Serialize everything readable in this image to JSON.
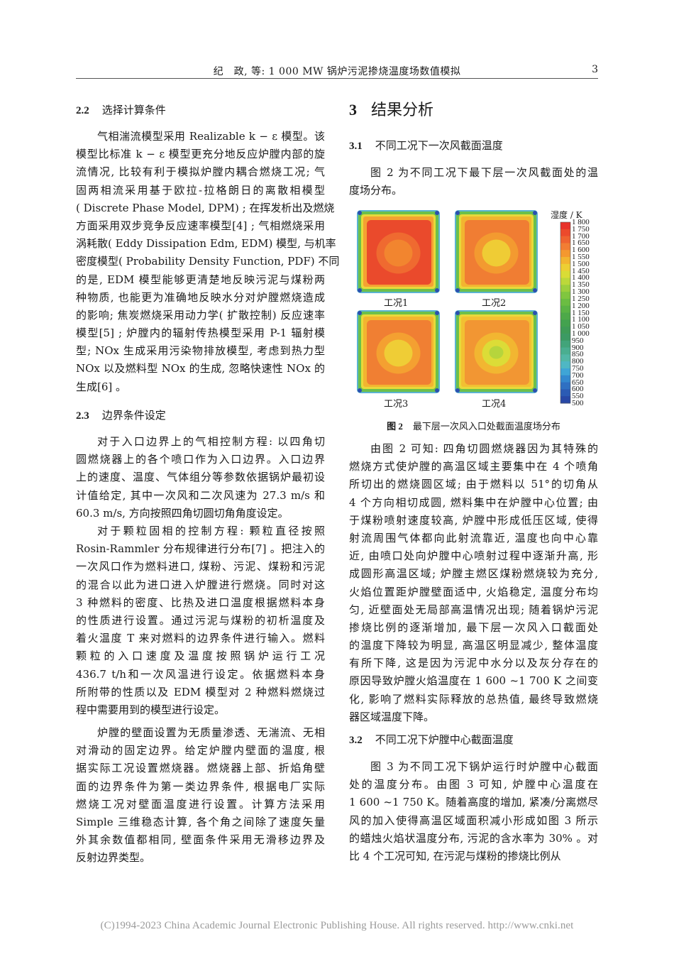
{
  "running_head": {
    "title": "纪　政, 等: 1 000 MW 锅炉污泥掺烧温度场数值模拟",
    "page_number": "3"
  },
  "left": {
    "s22": {
      "num": "2.2",
      "title": "选择计算条件"
    },
    "p1": [
      "气相湍流模型采用 Realizable k − ε 模型。该",
      "模型比标准 k − ε 模型更充分地反应炉膛内部的旋",
      "流情况, 比较有利于模拟炉膛内耦合燃烧工况; 气",
      "固两相流采用基于欧拉-拉格朗日的离散相模型",
      "( Discrete Phase Model, DPM) ; 在挥发析出及燃烧",
      "方面采用双步竞争反应速率模型[4] ; 气相燃烧采用",
      "涡耗散( Eddy Dissipation Edm, EDM) 模型, 与机率",
      "密度模型( Probability Density Function, PDF) 不同",
      "的是, EDM 模型能够更清楚地反映污泥与煤粉两",
      "种物质, 也能更为准确地反映水分对炉膛燃烧造成",
      "的影响; 焦炭燃烧采用动力学( 扩散控制) 反应速率",
      "模型[5] ; 炉膛内的辐射传热模型采用 P-1 辐射模",
      "型; NOx 生成采用污染物排放模型, 考虑到热力型",
      "NOx 以及燃料型 NOx 的生成, 忽略快速性 NOx 的",
      "生成[6] 。"
    ],
    "s23": {
      "num": "2.3",
      "title": "边界条件设定"
    },
    "p2": [
      "对于入口边界上的气相控制方程: 以四角切",
      "圆燃烧器上的各个喷口作为入口边界。入口边界",
      "上的速度、温度、气体组分等参数依据锅炉最初设",
      "计值给定, 其中一次风和二次风速为 27.3 m/s 和",
      "60.3 m/s, 方向按照四角切圆切角角度设定。"
    ],
    "p3": [
      "对于颗粒固相的控制方程: 颗粒直径按照",
      "Rosin-Rammler 分布规律进行分布[7] 。把注入的",
      "一次风口作为燃料进口, 煤粉、污泥、煤粉和污泥",
      "的混合以此为进口进入炉膛进行燃烧。同时对这",
      "3 种燃料的密度、比热及进口温度根据燃料本身",
      "的性质进行设置。通过污泥与煤粉的初析温度及",
      "着火温度 T 来对燃料的边界条件进行输入。燃料",
      "颗粒的入口速度及温度按照锅炉运行工况",
      "436.7 t/h和一次风温进行设定。依据燃料本身",
      "所附带的性质以及 EDM 模型对 2 种燃料燃烧过",
      "程中需要用到的模型进行设定。"
    ],
    "p4": [
      "炉膛的壁面设置为无质量渗透、无湍流、无相",
      "对滑动的固定边界。给定炉膛内壁面的温度, 根",
      "据实际工况设置燃烧器。燃烧器上部、折焰角壁",
      "面的边界条件为第一类边界条件, 根据电厂实际",
      "燃烧工况对壁面温度进行设置。计算方法采用",
      "Simple 三维稳态计算, 各个角之间除了速度矢量",
      "外其余数值都相同, 壁面条件采用无滑移边界及",
      "反射边界类型。"
    ]
  },
  "right": {
    "s3": {
      "num": "3",
      "title": "结果分析"
    },
    "s31": {
      "num": "3.1",
      "title": "不同工况下一次风截面温度"
    },
    "p1": [
      "图 2 为不同工况下最下层一次风截面处的温",
      "度场分布。"
    ],
    "p2": [
      "由图 2 可知: 四角切圆燃烧器因为其特殊的",
      "燃烧方式使炉膛的高温区域主要集中在 4 个喷角",
      "所切出的燃烧圆区域; 由于燃料以 51°的切角从",
      "4 个方向相切成圆, 燃料集中在炉膛中心位置; 由",
      "于煤粉喷射速度较高, 炉膛中形成低压区域, 使得",
      "射流周围气体都向此射流靠近, 温度也向中心靠",
      "近, 由喷口处向炉膛中心喷射过程中逐渐升高, 形",
      "成圆形高温区域; 炉膛主燃区煤粉燃烧较为充分,",
      "火焰位置距炉膛壁面适中, 火焰稳定, 温度分布均",
      "匀, 近壁面处无局部高温情况出现; 随着锅炉污泥",
      "掺烧比例的逐渐增加, 最下层一次风入口截面处",
      "的温度下降较为明显, 高温区明显减少, 整体温度",
      "有所下降, 这是因为污泥中水分以及灰分存在的",
      "原因导致炉膛火焰温度在 1 600 ~1 700 K 之间变",
      "化, 影响了燃料实际释放的总热值, 最终导致燃烧",
      "器区域温度下降。"
    ],
    "s32": {
      "num": "3.2",
      "title": "不同工况下炉膛中心截面温度"
    },
    "p3": [
      "图 3 为不同工况下锅炉运行时炉膛中心截面",
      "处的温度分布。由图 3 可知, 炉膛中心温度在",
      "1 600 ~1 750 K。随着高度的增加, 紧凑/分离燃尽",
      "风的加入使得高温区域面积减小形成如图 3 所示",
      "的蜡烛火焰状温度分布, 污泥的含水率为 30% 。对",
      "比 4 个工况可知, 在污泥与煤粉的掺烧比例从"
    ]
  },
  "figure": {
    "caption_num": "图 2",
    "caption": "最下层一次风入口处截面温度场分布",
    "colorbar_title": "湿度 / K",
    "colorbar_ticks": [
      "1 800",
      "1 750",
      "1 700",
      "1 650",
      "1 600",
      "1 550",
      "1 500",
      "1 450",
      "1 400",
      "1 350",
      "1 300",
      "1 250",
      "1 200",
      "1 150",
      "1 100",
      "1 050",
      "1 000",
      "950",
      "900",
      "850",
      "800",
      "750",
      "700",
      "650",
      "600",
      "550",
      "500"
    ],
    "colorbar_colors": [
      "#e8322a",
      "#ec4a2c",
      "#ef6330",
      "#f27d33",
      "#f4982f",
      "#f2b530",
      "#edcf33",
      "#d9dc36",
      "#bcd83a",
      "#9ccf3d",
      "#80c63f",
      "#6bbd42",
      "#5ab345",
      "#4da949",
      "#43a24f",
      "#3e9b57",
      "#3c9a63",
      "#42a47a",
      "#4aae90",
      "#52b7a6",
      "#4fb7c4",
      "#3fa5d6",
      "#3389cf",
      "#2f70c2",
      "#2b5bb4",
      "#2848a6"
    ],
    "cases": [
      {
        "label": "工况1",
        "main": "#ea4a2c",
        "ring": "#ef6a30",
        "center": "#f2852f",
        "edge": "#f4a232"
      },
      {
        "label": "工况2",
        "main": "#f07d33",
        "ring": "#f39a30",
        "center": "#efcc35",
        "edge": "#f2b530"
      },
      {
        "label": "工况3",
        "main": "#f07f33",
        "ring": "#f4a031",
        "center": "#efcd36",
        "edge": "#f2b530"
      },
      {
        "label": "工况4",
        "main": "#f29633",
        "ring": "#f2b631",
        "center": "#dcdc37",
        "edge": "#f2c032",
        "core": "#b6d53c"
      }
    ]
  },
  "footer": "(C)1994-2023 China Academic Journal Electronic Publishing House. All rights reserved.    http://www.cnki.net"
}
